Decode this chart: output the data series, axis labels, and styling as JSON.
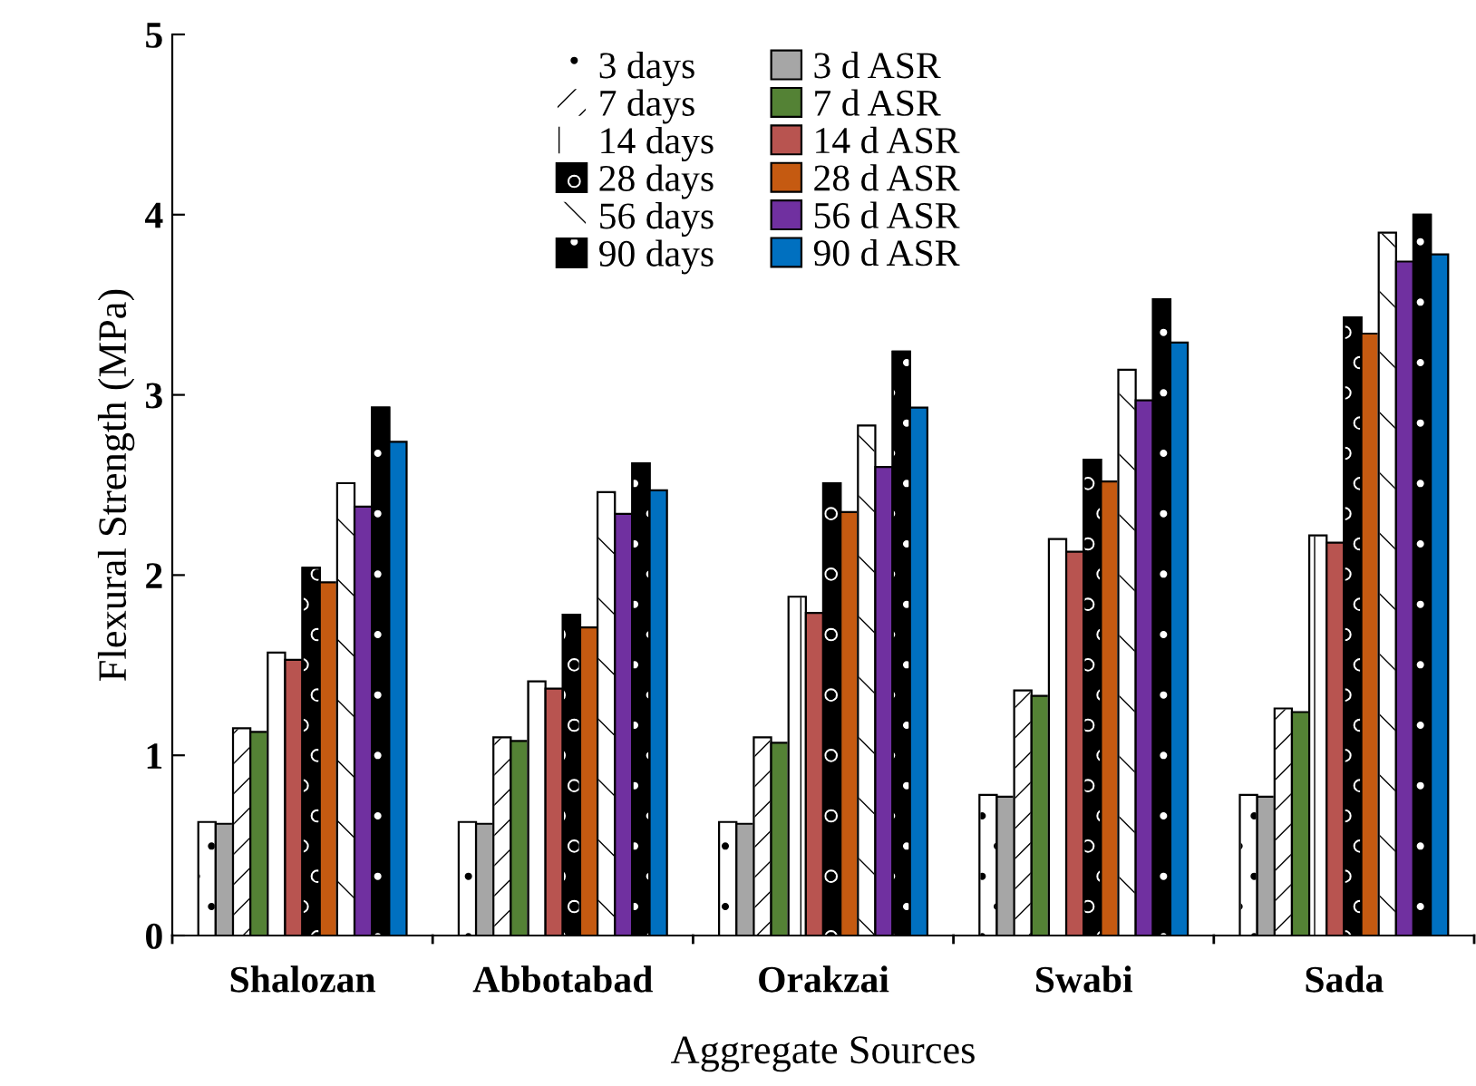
{
  "chart_data": {
    "type": "bar",
    "xlabel": "Aggregate Sources",
    "ylabel": "Flexural Strength (MPa)",
    "categories": [
      "Shalozan",
      "Abbotabad",
      "Orakzai",
      "Swabi",
      "Sada"
    ],
    "series": [
      {
        "name": "3 days",
        "color": "#ffffff",
        "values": [
          0.63,
          0.63,
          0.63,
          0.78,
          0.78
        ]
      },
      {
        "name": "3 d ASR",
        "color": "#a6a6a6",
        "values": [
          0.62,
          0.62,
          0.62,
          0.77,
          0.77
        ]
      },
      {
        "name": "7 days",
        "color": "#ffffff",
        "values": [
          1.15,
          1.1,
          1.1,
          1.36,
          1.26
        ]
      },
      {
        "name": "7 d ASR",
        "color": "#548235",
        "values": [
          1.13,
          1.08,
          1.07,
          1.33,
          1.24
        ]
      },
      {
        "name": "14 days",
        "color": "#ffffff",
        "values": [
          1.57,
          1.41,
          1.88,
          2.2,
          2.22
        ]
      },
      {
        "name": "14 d ASR",
        "color": "#b85450",
        "values": [
          1.53,
          1.37,
          1.79,
          2.13,
          2.18
        ]
      },
      {
        "name": "28 days",
        "color": "#000000",
        "values": [
          2.04,
          1.78,
          2.51,
          2.64,
          3.43
        ]
      },
      {
        "name": "28 d ASR",
        "color": "#c55a11",
        "values": [
          1.96,
          1.71,
          2.35,
          2.52,
          3.34
        ]
      },
      {
        "name": "56 days",
        "color": "#ffffff",
        "values": [
          2.51,
          2.46,
          2.83,
          3.14,
          3.9
        ]
      },
      {
        "name": "56 d ASR",
        "color": "#7030a0",
        "values": [
          2.38,
          2.34,
          2.6,
          2.97,
          3.74
        ]
      },
      {
        "name": "90 days",
        "color": "#000000",
        "values": [
          2.93,
          2.62,
          3.24,
          3.53,
          4.0
        ]
      },
      {
        "name": "90 d ASR",
        "color": "#0070c0",
        "values": [
          2.74,
          2.47,
          2.93,
          3.29,
          3.78
        ]
      }
    ],
    "ylim": [
      0,
      5
    ],
    "yticks": [
      0,
      1,
      2,
      3,
      4,
      5
    ],
    "grid": false,
    "legend": "top"
  }
}
